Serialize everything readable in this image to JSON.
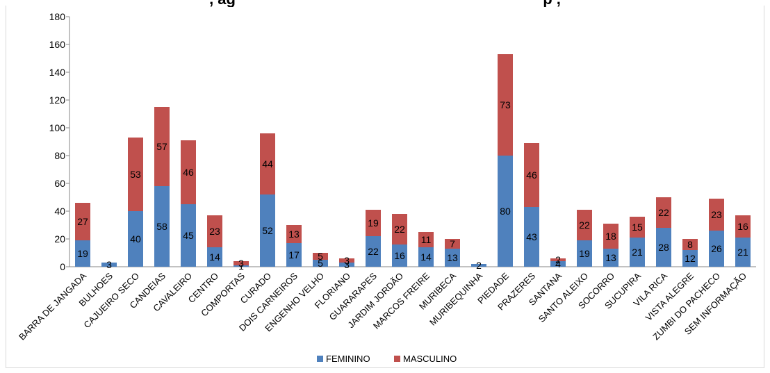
{
  "chart_data": {
    "type": "bar",
    "stacked": true,
    "title": ", ag",
    "title_right": "p ,",
    "xlabel": "",
    "ylabel": "",
    "ylim": [
      0,
      180
    ],
    "yticks": [
      0,
      20,
      40,
      60,
      80,
      100,
      120,
      140,
      160,
      180
    ],
    "grid": false,
    "legend_position": "bottom",
    "categories": [
      "BARRA DE JANGADA",
      "BULHOES",
      "CAJUEIRO SECO",
      "CANDEIAS",
      "CAVALEIRO",
      "CENTRO",
      "COMPORTAS",
      "CURADO",
      "DOIS CARNEIROS",
      "ENGENHO VELHO",
      "FLORIANO",
      "GUARARAPES",
      "JARDIM JORDÃO",
      "MARCOS FREIRE",
      "MURIBECA",
      "MURIBEQUINHA",
      "PIEDADE",
      "PRAZERES",
      "SANTANA",
      "SANTO ALEIXO",
      "SOCORRO",
      "SUCUPIRA",
      "VILA RICA",
      "VISTA ALEGRE",
      "ZUMBI DO PACHECO",
      "SEM INFORMAÇÃO"
    ],
    "series": [
      {
        "name": "FEMININO",
        "color": "#4f81bd",
        "values": [
          19,
          3,
          40,
          58,
          45,
          14,
          1,
          52,
          17,
          5,
          3,
          22,
          16,
          14,
          13,
          2,
          80,
          43,
          4,
          19,
          13,
          21,
          28,
          12,
          26,
          21
        ]
      },
      {
        "name": "MASCULINO",
        "color": "#c0504d",
        "values": [
          27,
          null,
          53,
          57,
          46,
          23,
          3,
          44,
          13,
          5,
          3,
          19,
          22,
          11,
          7,
          null,
          73,
          46,
          2,
          22,
          18,
          15,
          22,
          8,
          23,
          16
        ]
      }
    ]
  }
}
